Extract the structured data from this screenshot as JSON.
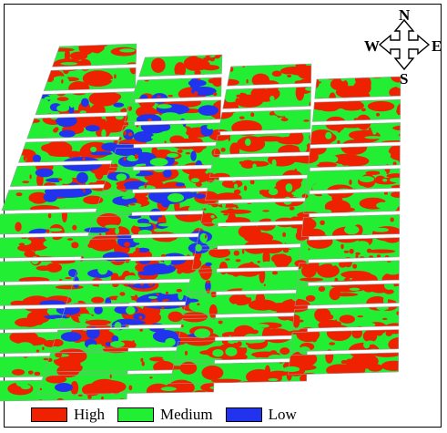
{
  "compass": {
    "north": "N",
    "south": "S",
    "west": "W",
    "east": "E"
  },
  "legend": [
    {
      "label": "High",
      "color": "#ee2200"
    },
    {
      "label": "Medium",
      "color": "#22ee33"
    },
    {
      "label": "Low",
      "color": "#2233ee"
    }
  ],
  "colors": {
    "high": "#ee2200",
    "medium": "#22ee33",
    "low": "#2233ee",
    "gap": "#ffffff",
    "frame": "#000000"
  }
}
